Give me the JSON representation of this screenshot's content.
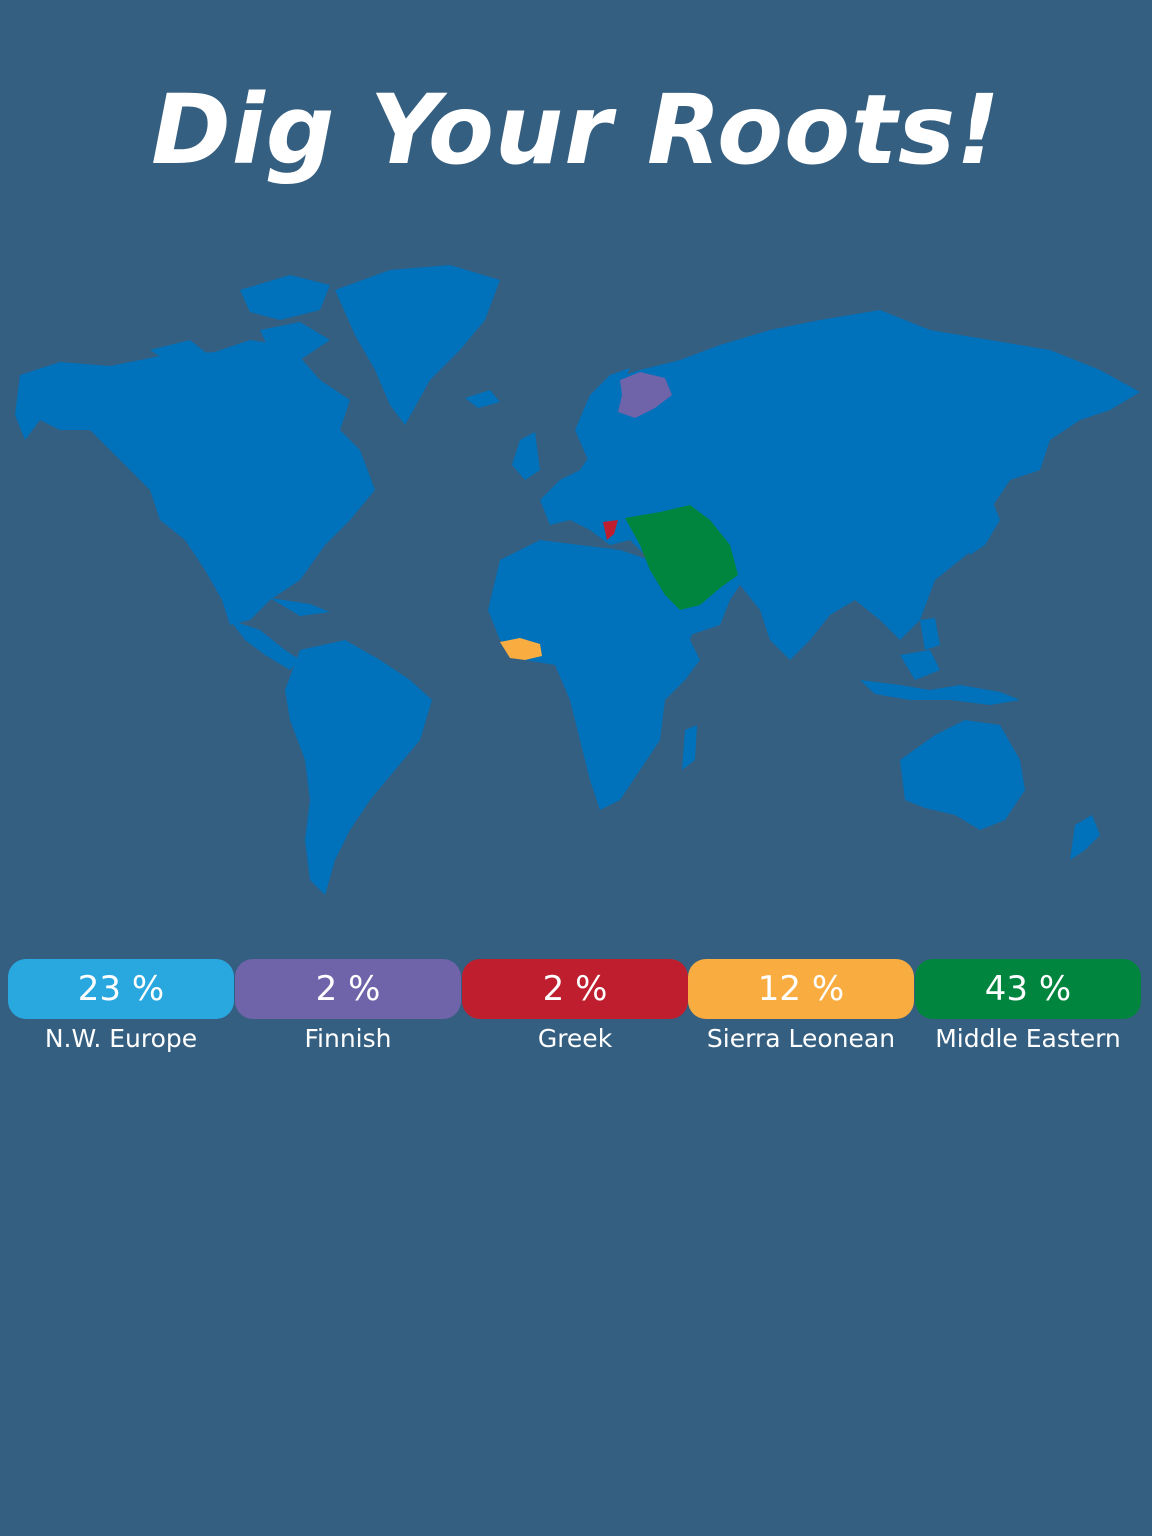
{
  "title": "Dig Your Roots!",
  "map": {
    "land_color": "#0071bb",
    "ocean_color": "#355f81",
    "highlighted_regions": [
      {
        "name": "Finnish",
        "color": "#6f63aa"
      },
      {
        "name": "Greek",
        "color": "#be1e2d"
      },
      {
        "name": "Sierra Leonean",
        "color": "#f9ad41"
      },
      {
        "name": "Middle Eastern",
        "color": "#00853f"
      }
    ]
  },
  "legend": [
    {
      "percent": "23 %",
      "label": "N.W. Europe",
      "color": "#29a8e0"
    },
    {
      "percent": "2 %",
      "label": "Finnish",
      "color": "#6f63aa"
    },
    {
      "percent": "2 %",
      "label": "Greek",
      "color": "#be1e2d"
    },
    {
      "percent": "12 %",
      "label": "Sierra Leonean",
      "color": "#f9ad41"
    },
    {
      "percent": "43 %",
      "label": "Middle Eastern",
      "color": "#00853f"
    }
  ]
}
